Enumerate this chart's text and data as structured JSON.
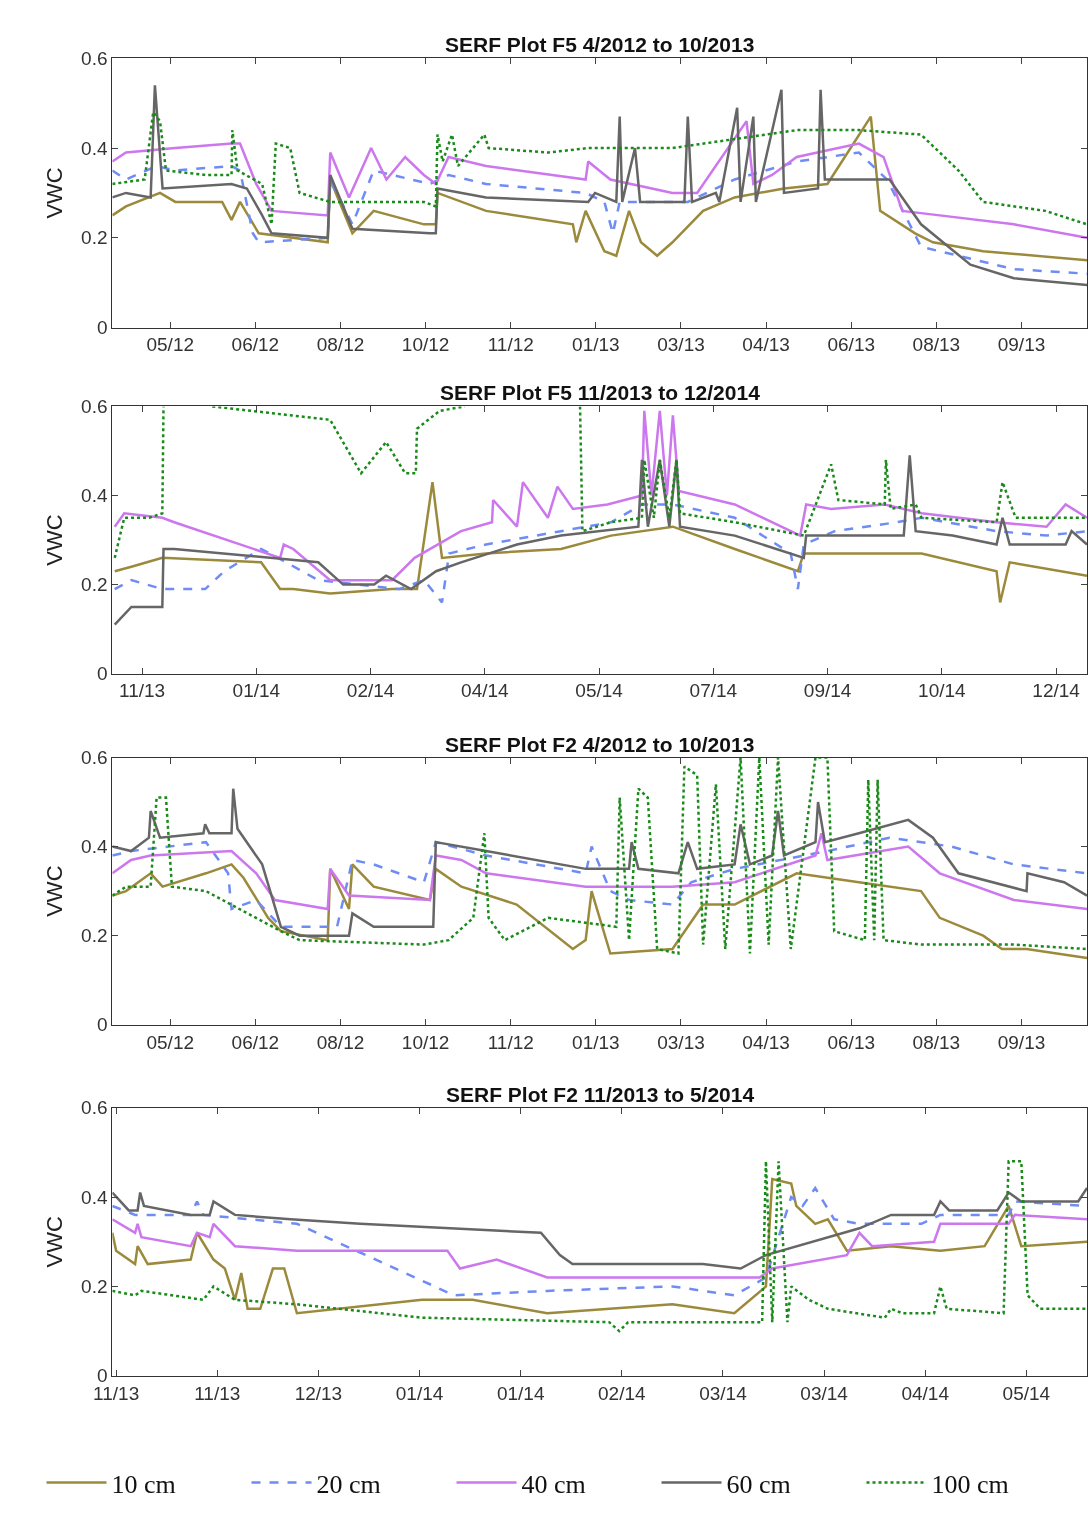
{
  "chart_data": [
    {
      "type": "line",
      "title": "SERF Plot F5 4/2012 to 10/2013",
      "ylabel": "VWC",
      "legend": "bottom",
      "xlim": [
        "2012-04-05",
        "2013-10-29T12:00"
      ],
      "ylim": [
        0,
        0.6
      ],
      "yticks": [
        0,
        {
          "value": 0.2,
          "label": "0.2"
        },
        {
          "value": 0.4,
          "label": "0.4"
        },
        {
          "value": 0.6,
          "label": "0.6"
        }
      ],
      "xticks": [
        {
          "value": "2012-05-09",
          "label": "05/12"
        },
        {
          "value": "2012-06-28",
          "label": "06/12"
        },
        {
          "value": "2012-08-17",
          "label": "08/12"
        },
        {
          "value": "2012-10-06",
          "label": "10/12"
        },
        {
          "value": "2012-11-25",
          "label": "11/12"
        },
        {
          "value": "2013-01-14",
          "label": "01/13"
        },
        {
          "value": "2013-03-05",
          "label": "03/13"
        },
        {
          "value": "2013-04-24",
          "label": "04/13"
        },
        {
          "value": "2013-06-13",
          "label": "06/13"
        },
        {
          "value": "2013-08-02",
          "label": "08/13"
        },
        {
          "value": "2013-09-21",
          "label": "09/13"
        }
      ],
      "marker": "none",
      "series": [
        {
          "name": "10 cm",
          "color": "#9c8a3c",
          "line_style": "solid",
          "x": [
            "2012-04-05",
            "2012-04-13",
            "2012-05-03",
            "2012-05-12",
            "2012-06-08T12:00",
            "2012-06-14",
            "2012-06-19",
            "2012-06-30",
            "2012-08-09T12:00",
            "2012-08-11",
            "2012-08-24",
            "2012-09-05T12:00",
            "2012-10-05",
            "2012-10-12",
            "2012-10-13",
            "2012-11-10T12:00",
            "2012-12-31T12:00",
            "2013-01-02T12:00",
            "2013-01-08",
            "2013-01-19",
            "2013-01-26",
            "2013-02-02T12:00",
            "2013-02-09T12:00",
            "2013-02-19",
            "2013-02-28",
            "2013-03-18",
            "2013-04-05T12:00",
            "2013-05-04T12:00",
            "2013-05-30",
            "2013-06-24T12:00",
            "2013-06-30",
            "2013-07-20T12:00",
            "2013-07-31",
            "2013-08-29T12:00",
            "2013-10-29T12:00"
          ],
          "values": [
            0.25,
            0.27,
            0.3,
            0.28,
            0.28,
            0.24,
            0.28,
            0.21,
            0.19,
            0.33,
            0.21,
            0.26,
            0.23,
            0.23,
            0.3,
            0.26,
            0.23,
            0.19,
            0.26,
            0.17,
            0.16,
            0.26,
            0.19,
            0.16,
            0.19,
            0.26,
            0.29,
            0.31,
            0.32,
            0.47,
            0.26,
            0.21,
            0.19,
            0.17,
            0.15
          ]
        },
        {
          "name": "20 cm",
          "color": "#6f8cf5",
          "line_style": "dashed",
          "x": [
            "2012-04-05",
            "2012-04-13",
            "2012-05-01",
            "2012-05-12",
            "2012-06-14",
            "2012-06-19",
            "2012-06-26T12:00",
            "2012-06-30",
            "2012-08-09T12:00",
            "2012-08-11",
            "2012-08-24",
            "2012-09-05T12:00",
            "2012-09-27T12:00",
            "2012-10-08T12:00",
            "2012-10-19T12:00",
            "2012-11-10T12:00",
            "2013-01-08",
            "2013-01-19",
            "2013-01-24",
            "2013-01-28",
            "2013-03-09",
            "2013-04-05T12:00",
            "2013-05-12",
            "2013-06-17T12:00",
            "2013-07-04",
            "2013-07-24",
            "2013-08-15",
            "2013-09-16T12:00",
            "2013-10-29T12:00"
          ],
          "values": [
            0.35,
            0.33,
            0.36,
            0.35,
            0.36,
            0.35,
            0.21,
            0.19,
            0.2,
            0.33,
            0.23,
            0.35,
            0.33,
            0.32,
            0.34,
            0.32,
            0.3,
            0.28,
            0.21,
            0.28,
            0.28,
            0.33,
            0.37,
            0.39,
            0.33,
            0.18,
            0.16,
            0.13,
            0.12
          ]
        },
        {
          "name": "40 cm",
          "color": "#cc77ee",
          "line_style": "solid",
          "x": [
            "2012-04-05",
            "2012-04-13",
            "2012-05-12",
            "2012-06-14",
            "2012-06-19",
            "2012-06-28T12:00",
            "2012-07-07T12:00",
            "2012-08-09T12:00",
            "2012-08-11",
            "2012-08-22",
            "2012-09-04",
            "2012-09-13",
            "2012-09-24",
            "2012-10-05",
            "2012-10-12",
            "2012-10-19T12:00",
            "2012-11-10T12:00",
            "2013-01-08",
            "2013-01-09T12:00",
            "2013-01-22T12:00",
            "2013-02-28",
            "2013-03-14T12:00",
            "2013-04-12T12:00",
            "2013-04-16T12:00",
            "2013-04-27T12:00",
            "2013-05-12",
            "2013-06-17T12:00",
            "2013-07-02",
            "2013-07-13",
            "2013-08-04",
            "2013-09-16T12:00",
            "2013-10-29T12:00"
          ],
          "values": [
            0.37,
            0.39,
            0.4,
            0.41,
            0.41,
            0.32,
            0.26,
            0.25,
            0.39,
            0.29,
            0.4,
            0.33,
            0.38,
            0.34,
            0.32,
            0.38,
            0.36,
            0.33,
            0.37,
            0.33,
            0.3,
            0.3,
            0.46,
            0.32,
            0.34,
            0.38,
            0.41,
            0.38,
            0.26,
            0.25,
            0.23,
            0.2
          ]
        },
        {
          "name": "60 cm",
          "color": "#666666",
          "line_style": "solid",
          "x": [
            "2012-04-05",
            "2012-04-13",
            "2012-04-27T12:00",
            "2012-04-30",
            "2012-05-04T12:00",
            "2012-06-14",
            "2012-06-23",
            "2012-07-02",
            "2012-07-07T12:00",
            "2012-08-09T12:00",
            "2012-08-11",
            "2012-08-24",
            "2012-10-08T12:00",
            "2012-10-12",
            "2012-10-13",
            "2012-11-10T12:00",
            "2013-01-09T12:00",
            "2013-01-13T12:00",
            "2013-01-26",
            "2013-01-28",
            "2013-01-29T12:00",
            "2013-02-06",
            "2013-02-09",
            "2013-03-07",
            "2013-03-09",
            "2013-03-11T12:00",
            "2013-03-25T12:00",
            "2013-03-27T12:00",
            "2013-04-07",
            "2013-04-09",
            "2013-04-16T12:00",
            "2013-04-18",
            "2013-05-03",
            "2013-05-04T12:00",
            "2013-05-24T12:00",
            "2013-05-26",
            "2013-05-28T12:00",
            "2013-06-26T12:00",
            "2013-07-05T12:00",
            "2013-07-24",
            "2013-08-22",
            "2013-09-16T12:00",
            "2013-10-29T12:00"
          ],
          "values": [
            0.29,
            0.3,
            0.29,
            0.54,
            0.31,
            0.32,
            0.31,
            0.25,
            0.21,
            0.2,
            0.34,
            0.22,
            0.21,
            0.21,
            0.31,
            0.29,
            0.28,
            0.3,
            0.28,
            0.47,
            0.28,
            0.4,
            0.28,
            0.28,
            0.47,
            0.28,
            0.3,
            0.28,
            0.49,
            0.28,
            0.47,
            0.28,
            0.53,
            0.3,
            0.31,
            0.53,
            0.33,
            0.33,
            0.33,
            0.23,
            0.14,
            0.11,
            0.095
          ]
        },
        {
          "name": "100 cm",
          "color": "#1a8a1a",
          "line_style": "dotted",
          "x": [
            "2012-04-05",
            "2012-04-24",
            "2012-04-29",
            "2012-05-03",
            "2012-05-06T12:00",
            "2012-05-30",
            "2012-06-14",
            "2012-06-14T12:00",
            "2012-06-17T12:00",
            "2012-07-02",
            "2012-07-07T12:00",
            "2012-07-10",
            "2012-07-18T12:00",
            "2012-07-24",
            "2012-08-11",
            "2012-10-05",
            "2012-10-12",
            "2012-10-13",
            "2012-10-16",
            "2012-10-21T12:00",
            "2012-10-25",
            "2012-11-09T12:00",
            "2012-11-12",
            "2012-12-17",
            "2013-01-09T12:00",
            "2013-01-22T12:00",
            "2013-02-28",
            "2013-04-05T12:00",
            "2013-05-12",
            "2013-06-17T12:00",
            "2013-07-24",
            "2013-08-15",
            "2013-08-29T12:00",
            "2013-10-05",
            "2013-10-29T12:00"
          ],
          "values": [
            0.32,
            0.33,
            0.48,
            0.46,
            0.35,
            0.34,
            0.34,
            0.44,
            0.35,
            0.32,
            0.23,
            0.41,
            0.4,
            0.3,
            0.28,
            0.28,
            0.27,
            0.43,
            0.37,
            0.43,
            0.36,
            0.43,
            0.4,
            0.39,
            0.4,
            0.4,
            0.4,
            0.42,
            0.44,
            0.44,
            0.43,
            0.35,
            0.28,
            0.26,
            0.23
          ]
        }
      ]
    },
    {
      "type": "line",
      "title": "SERF Plot F5 11/2013 to 12/2014",
      "ylabel": "VWC",
      "xlim": [
        "2013-11-05T12:00",
        "2014-12-20"
      ],
      "ylim": [
        0,
        0.6
      ],
      "yticks": [
        0,
        {
          "value": 0.2,
          "label": "0.2"
        },
        {
          "value": 0.4,
          "label": "0.4"
        },
        {
          "value": 0.6,
          "label": "0.6"
        }
      ],
      "xticks": [
        {
          "value": "2013-11-18",
          "label": "11/13"
        },
        {
          "value": "2014-01-05",
          "label": "01/14"
        },
        {
          "value": "2014-02-22",
          "label": "02/14"
        },
        {
          "value": "2014-04-11",
          "label": "04/14"
        },
        {
          "value": "2014-05-29",
          "label": "05/14"
        },
        {
          "value": "2014-07-16",
          "label": "07/14"
        },
        {
          "value": "2014-09-02",
          "label": "09/14"
        },
        {
          "value": "2014-10-20",
          "label": "10/14"
        },
        {
          "value": "2014-12-07",
          "label": "12/14"
        }
      ],
      "marker": "none",
      "series": [
        {
          "color": "#9c8a3c",
          "line_style": "solid",
          "x": [
            "2013-11-06T12:00",
            "2013-11-13T12:00",
            "2013-11-26T12:00",
            "2014-01-07",
            "2014-01-15",
            "2014-01-20T12:00",
            "2014-02-05",
            "2014-03-03",
            "2014-03-13T12:00",
            "2014-03-20",
            "2014-03-24",
            "2014-04-11T12:00",
            "2014-05-13",
            "2014-06-03",
            "2014-06-29",
            "2014-07-25",
            "2014-08-20T12:00",
            "2014-08-23",
            "2014-10-11T12:00",
            "2014-11-12",
            "2014-11-13T12:00",
            "2014-11-17T12:00",
            "2014-12-20"
          ],
          "values": [
            0.23,
            0.24,
            0.26,
            0.25,
            0.19,
            0.19,
            0.18,
            0.19,
            0.19,
            0.43,
            0.26,
            0.27,
            0.28,
            0.31,
            0.33,
            0.28,
            0.23,
            0.27,
            0.27,
            0.23,
            0.16,
            0.25,
            0.22
          ]
        },
        {
          "color": "#6f8cf5",
          "line_style": "dashed",
          "x": [
            "2013-11-06T12:00",
            "2013-11-13T12:00",
            "2013-11-26T12:00",
            "2013-12-14T12:00",
            "2013-12-22T12:00",
            "2014-01-07",
            "2014-01-17T12:00",
            "2014-01-31",
            "2014-03-06",
            "2014-03-16T12:00",
            "2014-03-24",
            "2014-03-27",
            "2014-04-11T12:00",
            "2014-05-13",
            "2014-06-03",
            "2014-06-16",
            "2014-06-29",
            "2014-07-25",
            "2014-08-17T12:00",
            "2014-08-20T12:00",
            "2014-08-23",
            "2014-09-05",
            "2014-10-01",
            "2014-10-11T12:00",
            "2014-11-12",
            "2014-12-03",
            "2014-12-20"
          ],
          "values": [
            0.19,
            0.21,
            0.19,
            0.19,
            0.23,
            0.28,
            0.25,
            0.21,
            0.19,
            0.21,
            0.16,
            0.27,
            0.29,
            0.32,
            0.34,
            0.38,
            0.38,
            0.35,
            0.27,
            0.19,
            0.29,
            0.32,
            0.34,
            0.35,
            0.32,
            0.31,
            0.32
          ]
        },
        {
          "color": "#cc77ee",
          "line_style": "solid",
          "x": [
            "2013-11-06T12:00",
            "2013-11-10T12:00",
            "2013-11-26T12:00",
            "2013-12-01T12:00",
            "2014-01-15",
            "2014-01-16T12:00",
            "2014-01-20T12:00",
            "2014-02-05",
            "2014-03-03",
            "2014-03-12T12:00",
            "2014-04-01",
            "2014-04-14",
            "2014-04-14T12:00",
            "2014-04-24T12:00",
            "2014-04-27",
            "2014-05-07T12:00",
            "2014-05-11T12:00",
            "2014-05-18",
            "2014-06-01T12:00",
            "2014-06-16",
            "2014-06-17",
            "2014-06-20",
            "2014-06-23T12:00",
            "2014-06-26T12:00",
            "2014-06-29",
            "2014-07-01T12:00",
            "2014-07-25",
            "2014-08-21T12:00",
            "2014-08-24",
            "2014-09-03T12:00",
            "2014-09-26",
            "2014-10-11T12:00",
            "2014-11-12",
            "2014-12-03",
            "2014-12-11",
            "2014-12-20"
          ],
          "values": [
            0.33,
            0.36,
            0.35,
            0.34,
            0.26,
            0.29,
            0.28,
            0.21,
            0.21,
            0.26,
            0.32,
            0.34,
            0.39,
            0.33,
            0.43,
            0.35,
            0.42,
            0.37,
            0.38,
            0.4,
            0.59,
            0.4,
            0.59,
            0.4,
            0.58,
            0.41,
            0.38,
            0.31,
            0.38,
            0.37,
            0.38,
            0.36,
            0.34,
            0.33,
            0.38,
            0.35
          ]
        },
        {
          "color": "#666666",
          "line_style": "solid",
          "x": [
            "2013-11-06T12:00",
            "2013-11-13T12:00",
            "2013-11-26T12:00",
            "2013-11-27",
            "2013-12-01T12:00",
            "2014-01-31",
            "2014-02-10T12:00",
            "2014-02-23T12:00",
            "2014-02-28T12:00",
            "2014-03-11",
            "2014-03-21T12:00",
            "2014-04-01",
            "2014-04-24T12:00",
            "2014-05-13",
            "2014-06-14T12:00",
            "2014-06-16",
            "2014-06-18T12:00",
            "2014-06-23T12:00",
            "2014-06-27T12:00",
            "2014-06-30T12:00",
            "2014-07-02",
            "2014-07-25",
            "2014-08-23",
            "2014-08-24",
            "2014-10-04",
            "2014-10-06T12:00",
            "2014-10-09",
            "2014-10-24T12:00",
            "2014-11-12",
            "2014-11-14T12:00",
            "2014-11-17T12:00",
            "2014-12-11",
            "2014-12-13T12:00",
            "2014-12-20"
          ],
          "values": [
            0.11,
            0.15,
            0.15,
            0.28,
            0.28,
            0.25,
            0.2,
            0.2,
            0.22,
            0.19,
            0.23,
            0.25,
            0.29,
            0.31,
            0.33,
            0.48,
            0.33,
            0.48,
            0.33,
            0.48,
            0.33,
            0.31,
            0.26,
            0.31,
            0.31,
            0.49,
            0.32,
            0.31,
            0.29,
            0.35,
            0.29,
            0.29,
            0.32,
            0.29
          ]
        },
        {
          "color": "#1a8a1a",
          "line_style": "dotted",
          "x": [
            "2013-11-06T12:00",
            "2013-11-10T12:00",
            "2013-11-21",
            "2013-11-26T12:00",
            "2013-11-27",
            "2013-12-01T12:00",
            "2013-12-17T12:00",
            "2014-02-05",
            "2014-02-18",
            "2014-02-28T12:00",
            "2014-03-08T12:00",
            "2014-03-13",
            "2014-03-13T12:00",
            "2014-03-23",
            "2014-04-02T12:00",
            "2014-04-11T12:00",
            "2014-05-21",
            "2014-05-22",
            "2014-06-03",
            "2014-06-16",
            "2014-06-17",
            "2014-06-21",
            "2014-06-23T12:00",
            "2014-06-27T12:00",
            "2014-06-30T12:00",
            "2014-07-02",
            "2014-07-25",
            "2014-08-23",
            "2014-09-03T12:00",
            "2014-09-06T12:00",
            "2014-09-26",
            "2014-09-26T12:00",
            "2014-09-28T12:00",
            "2014-10-09",
            "2014-10-11T12:00",
            "2014-11-12",
            "2014-11-14T12:00",
            "2014-11-20",
            "2014-12-20"
          ],
          "values": [
            0.26,
            0.35,
            0.35,
            0.36,
            0.6,
            null,
            0.6,
            0.57,
            0.45,
            0.52,
            0.45,
            0.45,
            0.55,
            0.59,
            0.6,
            null,
            0.6,
            0.32,
            0.34,
            0.35,
            0.48,
            0.35,
            0.48,
            0.35,
            0.48,
            0.36,
            0.34,
            0.31,
            0.47,
            0.39,
            0.38,
            0.48,
            0.37,
            0.38,
            0.35,
            0.34,
            0.43,
            0.35,
            0.35
          ]
        }
      ]
    },
    {
      "type": "line",
      "title": "SERF Plot F2 4/2012 to 10/2013",
      "ylabel": "VWC",
      "xlim": [
        "2012-04-05",
        "2013-10-29T12:00"
      ],
      "ylim": [
        0,
        0.6
      ],
      "yticks": [
        0,
        {
          "value": 0.2,
          "label": "0.2"
        },
        {
          "value": 0.4,
          "label": "0.4"
        },
        {
          "value": 0.6,
          "label": "0.6"
        }
      ],
      "xticks": [
        {
          "value": "2012-05-09",
          "label": "05/12"
        },
        {
          "value": "2012-06-28",
          "label": "06/12"
        },
        {
          "value": "2012-08-17",
          "label": "08/12"
        },
        {
          "value": "2012-10-06",
          "label": "10/12"
        },
        {
          "value": "2012-11-25",
          "label": "11/12"
        },
        {
          "value": "2013-01-14",
          "label": "01/13"
        },
        {
          "value": "2013-03-05",
          "label": "03/13"
        },
        {
          "value": "2013-04-24",
          "label": "04/13"
        },
        {
          "value": "2013-06-13",
          "label": "06/13"
        },
        {
          "value": "2013-08-02",
          "label": "08/13"
        },
        {
          "value": "2013-09-21",
          "label": "09/13"
        }
      ],
      "marker": "none",
      "series": [
        {
          "color": "#9c8a3c",
          "line_style": "solid",
          "x": [
            "2012-04-05",
            "2012-04-13",
            "2012-04-27T12:00",
            "2012-05-04T12:00",
            "2012-05-30",
            "2012-06-14",
            "2012-06-21",
            "2012-07-05T12:00",
            "2012-07-13",
            "2012-08-09T12:00",
            "2012-08-11",
            "2012-08-22",
            "2012-08-24",
            "2012-09-05T12:00",
            "2012-10-08T12:00",
            "2012-10-12",
            "2012-10-27",
            "2012-11-28T12:00",
            "2012-12-31T12:00",
            "2013-01-08",
            "2013-01-11T12:00",
            "2013-01-22T12:00",
            "2013-02-28",
            "2013-03-18",
            "2013-04-05T12:00",
            "2013-05-12",
            "2013-06-17T12:00",
            "2013-07-24",
            "2013-08-04",
            "2013-08-29T12:00",
            "2013-09-09T12:00",
            "2013-09-24",
            "2013-10-29T12:00"
          ],
          "values": [
            0.29,
            0.3,
            0.34,
            0.31,
            0.34,
            0.36,
            0.33,
            0.24,
            0.21,
            0.19,
            0.35,
            0.26,
            0.36,
            0.31,
            0.28,
            0.35,
            0.31,
            0.27,
            0.17,
            0.19,
            0.3,
            0.16,
            0.17,
            0.27,
            0.27,
            0.34,
            0.32,
            0.3,
            0.24,
            0.2,
            0.17,
            0.17,
            0.15
          ]
        },
        {
          "color": "#6f8cf5",
          "line_style": "dashed",
          "x": [
            "2012-04-05",
            "2012-04-16",
            "2012-05-30",
            "2012-06-12",
            "2012-06-14",
            "2012-06-28T12:00",
            "2012-07-13",
            "2012-08-09T12:00",
            "2012-08-15",
            "2012-08-24",
            "2012-09-05T12:00",
            "2012-10-05",
            "2012-10-12",
            "2012-11-10T12:00",
            "2013-01-08",
            "2013-01-11T12:00",
            "2013-01-22T12:00",
            "2013-02-02T12:00",
            "2013-02-28",
            "2013-03-11",
            "2013-04-05T12:00",
            "2013-05-30",
            "2013-07-05T12:00",
            "2013-08-11",
            "2013-09-16T12:00",
            "2013-10-29T12:00"
          ],
          "values": [
            0.38,
            0.39,
            0.41,
            0.34,
            0.26,
            0.28,
            0.22,
            0.22,
            0.22,
            0.37,
            0.36,
            0.32,
            0.41,
            0.38,
            0.34,
            0.4,
            0.3,
            0.28,
            0.27,
            0.32,
            0.35,
            0.39,
            0.42,
            0.4,
            0.36,
            0.34
          ]
        },
        {
          "color": "#cc77ee",
          "line_style": "solid",
          "x": [
            "2012-04-05",
            "2012-04-16",
            "2012-04-27T12:00",
            "2012-06-14",
            "2012-06-28T12:00",
            "2012-07-09T12:00",
            "2012-08-09T12:00",
            "2012-08-11",
            "2012-08-22",
            "2012-10-08T12:00",
            "2012-10-12",
            "2012-10-27",
            "2012-11-10T12:00",
            "2013-01-08",
            "2013-02-02T12:00",
            "2013-02-28",
            "2013-04-05T12:00",
            "2013-05-23",
            "2013-05-26T12:00",
            "2013-05-30",
            "2013-07-16T12:00",
            "2013-08-04",
            "2013-09-16T12:00",
            "2013-10-29T12:00"
          ],
          "values": [
            0.34,
            0.37,
            0.38,
            0.39,
            0.34,
            0.28,
            0.26,
            0.35,
            0.29,
            0.28,
            0.38,
            0.37,
            0.34,
            0.31,
            0.31,
            0.31,
            0.32,
            0.38,
            0.43,
            0.37,
            0.4,
            0.34,
            0.28,
            0.26
          ]
        },
        {
          "color": "#666666",
          "line_style": "solid",
          "x": [
            "2012-04-05",
            "2012-04-16",
            "2012-04-26T12:00",
            "2012-04-27T12:00",
            "2012-05-03",
            "2012-05-28T12:00",
            "2012-05-29T12:00",
            "2012-06-01",
            "2012-06-14",
            "2012-06-15",
            "2012-06-17T12:00",
            "2012-07-02",
            "2012-07-13",
            "2012-07-24",
            "2012-08-22",
            "2012-08-24",
            "2012-09-05T12:00",
            "2012-10-10T12:00",
            "2012-10-12",
            "2012-11-10T12:00",
            "2013-01-08",
            "2013-02-02T12:00",
            "2013-02-04",
            "2013-02-08",
            "2013-03-03T12:00",
            "2013-03-09",
            "2013-03-14T12:00",
            "2013-04-05T12:00",
            "2013-04-09",
            "2013-04-14T12:00",
            "2013-04-27T12:00",
            "2013-05-01",
            "2013-05-04T12:00",
            "2013-05-23",
            "2013-05-24T12:00",
            "2013-05-28T12:00",
            "2013-06-17T12:00",
            "2013-07-16T12:00",
            "2013-07-31",
            "2013-08-15",
            "2013-09-24",
            "2013-09-24T12:00",
            "2013-10-16",
            "2013-10-29T12:00"
          ],
          "values": [
            0.4,
            0.39,
            0.42,
            0.48,
            0.42,
            0.43,
            0.45,
            0.43,
            0.43,
            0.53,
            0.44,
            0.36,
            0.22,
            0.2,
            0.2,
            0.25,
            0.22,
            0.22,
            0.41,
            0.39,
            0.35,
            0.35,
            0.41,
            0.35,
            0.34,
            0.41,
            0.35,
            0.36,
            0.45,
            0.36,
            0.38,
            0.48,
            0.38,
            0.41,
            0.5,
            0.41,
            0.43,
            0.46,
            0.42,
            0.34,
            0.3,
            0.34,
            0.32,
            0.29
          ]
        },
        {
          "color": "#1a8a1a",
          "line_style": "dotted",
          "x": [
            "2012-04-05",
            "2012-04-13",
            "2012-04-27T12:00",
            "2012-05-01",
            "2012-05-06T12:00",
            "2012-05-10",
            "2012-05-30",
            "2012-07-13",
            "2012-07-24",
            "2012-10-05",
            "2012-10-19T12:00",
            "2012-11-03",
            "2012-11-09T12:00",
            "2012-11-12",
            "2012-11-21T12:00",
            "2012-12-17",
            "2013-01-26",
            "2013-01-28",
            "2013-02-02T12:00",
            "2013-02-08",
            "2013-02-13T12:00",
            "2013-02-19",
            "2013-03-03T12:00",
            "2013-03-07",
            "2013-03-14T12:00",
            "2013-03-18",
            "2013-03-25T12:00",
            "2013-03-31",
            "2013-04-09",
            "2013-04-14T12:00",
            "2013-04-20",
            "2013-04-25T12:00",
            "2013-05-01",
            "2013-05-08T12:00",
            "2013-05-23",
            "2013-05-30",
            "2013-06-03",
            "2013-06-21",
            "2013-06-23",
            "2013-06-26T12:00",
            "2013-06-28T12:00",
            "2013-07-02",
            "2013-07-24",
            "2013-09-16T12:00",
            "2013-10-29T12:00"
          ],
          "values": [
            0.29,
            0.31,
            0.31,
            0.51,
            0.51,
            0.31,
            0.3,
            0.21,
            0.19,
            0.18,
            0.19,
            0.24,
            0.43,
            0.24,
            0.19,
            0.24,
            0.22,
            0.51,
            0.19,
            0.53,
            0.51,
            0.17,
            0.16,
            0.58,
            0.56,
            0.18,
            0.54,
            0.17,
            0.6,
            0.16,
            0.6,
            0.18,
            0.6,
            0.17,
            0.6,
            0.6,
            0.21,
            0.19,
            0.55,
            0.19,
            0.55,
            0.19,
            0.18,
            0.18,
            0.17
          ]
        }
      ]
    },
    {
      "type": "line",
      "title": "SERF Plot F2 11/2013 to 5/2014",
      "ylabel": "VWC",
      "xlim": [
        "2013-11-05T06:00",
        "2014-05-17"
      ],
      "ylim": [
        0,
        0.6
      ],
      "yticks": [
        0,
        {
          "value": 0.2,
          "label": "0.2"
        },
        {
          "value": 0.4,
          "label": "0.4"
        },
        {
          "value": 0.6,
          "label": "0.6"
        }
      ],
      "xticks": [
        {
          "value": "2013-11-06",
          "label": "11/13"
        },
        {
          "value": "2013-11-26",
          "label": "11/13"
        },
        {
          "value": "2013-12-16",
          "label": "12/13"
        },
        {
          "value": "2014-01-05",
          "label": "01/14"
        },
        {
          "value": "2014-01-25",
          "label": "01/14"
        },
        {
          "value": "2014-02-14",
          "label": "02/14"
        },
        {
          "value": "2014-03-06",
          "label": "03/14"
        },
        {
          "value": "2014-03-26",
          "label": "03/14"
        },
        {
          "value": "2014-04-15",
          "label": "04/14"
        },
        {
          "value": "2014-05-05",
          "label": "05/14"
        }
      ],
      "marker": "none",
      "series": [
        {
          "color": "#9c8a3c",
          "line_style": "solid",
          "x": [
            "2013-11-05T06:00",
            "2013-11-06",
            "2013-11-09T18:00",
            "2013-11-10T06:00",
            "2013-11-12T06:00",
            "2013-11-20T18:00",
            "2013-11-22",
            "2013-11-25T06:00",
            "2013-11-27T12:00",
            "2013-11-29T12:00",
            "2013-11-30T18:00",
            "2013-12-02",
            "2013-12-04T12:00",
            "2013-12-07",
            "2013-12-09T06:00",
            "2013-12-11T18:00",
            "2014-01-05T12:00",
            "2014-01-15T12:00",
            "2014-01-30T06:00",
            "2014-02-24",
            "2014-03-08T06:00",
            "2014-03-14T12:00",
            "2014-03-15T18:00",
            "2014-03-19T12:00",
            "2014-03-20T12:00",
            "2014-03-24T06:00",
            "2014-03-26T18:00",
            "2014-03-30T12:00",
            "2014-04-08T06:00",
            "2014-04-18",
            "2014-04-26T18:00",
            "2014-05-01T12:00",
            "2014-05-04",
            "2014-05-17"
          ],
          "values": [
            0.32,
            0.28,
            0.25,
            0.29,
            0.25,
            0.26,
            0.32,
            0.26,
            0.24,
            0.17,
            0.23,
            0.15,
            0.15,
            0.24,
            0.24,
            0.14,
            0.17,
            0.17,
            0.14,
            0.16,
            0.14,
            0.2,
            0.44,
            0.43,
            0.38,
            0.34,
            0.35,
            0.28,
            0.29,
            0.28,
            0.29,
            0.38,
            0.29,
            0.3
          ]
        },
        {
          "color": "#6f8cf5",
          "line_style": "dashed",
          "x": [
            "2013-11-05T06:00",
            "2013-11-09T18:00",
            "2013-11-20T18:00",
            "2013-11-22",
            "2013-11-23T06:00",
            "2013-12-11T18:00",
            "2014-01-08",
            "2014-01-11T18:00",
            "2014-01-30T06:00",
            "2014-02-24",
            "2014-03-08T06:00",
            "2014-03-14T12:00",
            "2014-03-19T12:00",
            "2014-03-21T18:00",
            "2014-03-24T06:00",
            "2014-03-28",
            "2014-04-02",
            "2014-04-14T06:00",
            "2014-04-18",
            "2014-05-01T12:00",
            "2014-05-02T18:00",
            "2014-05-17"
          ],
          "values": [
            0.38,
            0.36,
            0.36,
            0.39,
            0.36,
            0.34,
            0.2,
            0.18,
            0.19,
            0.2,
            0.18,
            0.22,
            0.4,
            0.38,
            0.42,
            0.35,
            0.34,
            0.34,
            0.36,
            0.36,
            0.39,
            0.38
          ]
        },
        {
          "color": "#cc77ee",
          "line_style": "solid",
          "x": [
            "2013-11-05T06:00",
            "2013-11-09T18:00",
            "2013-11-10T06:00",
            "2013-11-11",
            "2013-11-20T18:00",
            "2013-11-22",
            "2013-11-24T12:00",
            "2013-11-25T06:00",
            "2013-11-29T12:00",
            "2013-12-11T18:00",
            "2014-01-10T12:00",
            "2014-01-13",
            "2014-01-20T06:00",
            "2014-01-30T06:00",
            "2014-02-24",
            "2014-03-13T06:00",
            "2014-03-15T18:00",
            "2014-03-30T12:00",
            "2014-04-02",
            "2014-04-04T12:00",
            "2014-04-16T18:00",
            "2014-04-18",
            "2014-05-01T12:00",
            "2014-05-02T18:00",
            "2014-05-17"
          ],
          "values": [
            0.35,
            0.32,
            0.34,
            0.31,
            0.29,
            0.32,
            0.31,
            0.34,
            0.29,
            0.28,
            0.28,
            0.24,
            0.26,
            0.22,
            0.22,
            0.22,
            0.24,
            0.27,
            0.32,
            0.29,
            0.3,
            0.34,
            0.34,
            0.36,
            0.35
          ]
        },
        {
          "color": "#666666",
          "line_style": "solid",
          "x": [
            "2013-11-05T06:00",
            "2013-11-08T12:00",
            "2013-11-10T06:00",
            "2013-11-10T18:00",
            "2013-11-11T12:00",
            "2013-11-20T18:00",
            "2013-11-24T12:00",
            "2013-11-25T06:00",
            "2013-11-29T12:00",
            "2013-12-10T12:00",
            "2013-12-24T06:00",
            "2014-01-29",
            "2014-02-01T18:00",
            "2014-02-04T06:00",
            "2014-03-02",
            "2014-03-09T12:00",
            "2014-03-14T12:00",
            "2014-04-02",
            "2014-04-08T06:00",
            "2014-04-16T18:00",
            "2014-04-18",
            "2014-04-19T18:00",
            "2014-04-29T06:00",
            "2014-05-01T12:00",
            "2014-05-04",
            "2014-05-15T06:00",
            "2014-05-17"
          ],
          "values": [
            0.41,
            0.37,
            0.37,
            0.41,
            0.38,
            0.36,
            0.36,
            0.39,
            0.36,
            0.35,
            0.34,
            0.32,
            0.27,
            0.25,
            0.25,
            0.24,
            0.27,
            0.33,
            0.36,
            0.36,
            0.39,
            0.37,
            0.37,
            0.41,
            0.39,
            0.39,
            0.42
          ]
        },
        {
          "color": "#1a8a1a",
          "line_style": "dotted",
          "x": [
            "2013-11-05T06:00",
            "2013-11-09T18:00",
            "2013-11-11",
            "2013-11-23T06:00",
            "2013-11-25T06:00",
            "2013-11-29T12:00",
            "2013-12-11T18:00",
            "2014-01-05T12:00",
            "2014-02-11T12:00",
            "2014-02-13T12:00",
            "2014-02-15T06:00",
            "2014-03-13T18:00",
            "2014-03-14T12:00",
            "2014-03-15T18:00",
            "2014-03-17",
            "2014-03-18T18:00",
            "2014-03-19T12:00",
            "2014-03-23",
            "2014-03-26T18:00",
            "2014-04-07",
            "2014-04-08T06:00",
            "2014-04-10T12:00",
            "2014-04-16T18:00",
            "2014-04-18",
            "2014-04-19T06:00",
            "2014-04-30T12:00",
            "2014-05-01T12:00",
            "2014-05-04",
            "2014-05-05T06:00",
            "2014-05-07T18:00",
            "2014-05-17"
          ],
          "values": [
            0.19,
            0.18,
            0.19,
            0.17,
            0.2,
            0.17,
            0.16,
            0.13,
            0.12,
            0.1,
            0.12,
            0.12,
            0.48,
            0.12,
            0.48,
            0.12,
            0.2,
            0.17,
            0.15,
            0.13,
            0.15,
            0.14,
            0.14,
            0.2,
            0.15,
            0.14,
            0.48,
            0.48,
            0.18,
            0.15,
            0.15
          ]
        }
      ]
    }
  ]
}
